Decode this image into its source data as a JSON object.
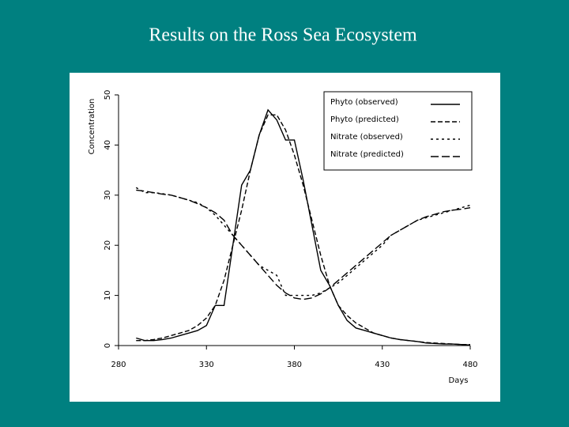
{
  "chart_data": {
    "type": "line",
    "title": "Results on the Ross Sea Ecosystem",
    "x_label": "Days",
    "y_label": "Concentration",
    "xlim": [
      280,
      480
    ],
    "xticks": [
      280,
      330,
      380,
      430,
      480
    ],
    "ylim": [
      0,
      50
    ],
    "yticks": [
      0,
      10,
      20,
      30,
      40,
      50
    ],
    "legend": "top-right",
    "x": [
      290,
      295,
      300,
      305,
      310,
      315,
      320,
      325,
      330,
      335,
      340,
      345,
      350,
      355,
      360,
      365,
      370,
      375,
      380,
      385,
      390,
      395,
      400,
      405,
      410,
      415,
      420,
      425,
      430,
      435,
      440,
      445,
      450,
      455,
      460,
      465,
      470,
      475,
      480
    ],
    "series": [
      {
        "name": "Phyto (observed)",
        "color": "#000000",
        "dash": "solid",
        "values": [
          1.5,
          1,
          1,
          1.2,
          1.5,
          2,
          2.5,
          3,
          4,
          8,
          8,
          20,
          32,
          35,
          42,
          47,
          45,
          41,
          41,
          33,
          24,
          15,
          12,
          8,
          5,
          3.5,
          3,
          2.5,
          2,
          1.5,
          1.2,
          1,
          0.8,
          0.5,
          0.4,
          0.3,
          0.3,
          0.2,
          0.1
        ]
      },
      {
        "name": "Phyto (predicted)",
        "color": "#000000",
        "dash": "dashed",
        "values": [
          1,
          1,
          1.2,
          1.5,
          2,
          2.5,
          3,
          4,
          5.5,
          8,
          13,
          20,
          27,
          35,
          42,
          46,
          46,
          43,
          38,
          32,
          25,
          18,
          12,
          8,
          6,
          4.5,
          3.5,
          2.5,
          2,
          1.5,
          1.2,
          1,
          0.8,
          0.6,
          0.5,
          0.4,
          0.3,
          0.2,
          0.2
        ]
      },
      {
        "name": "Nitrate (observed)",
        "color": "#000000",
        "dash": "short-dashed",
        "values": [
          31.5,
          30.5,
          30.5,
          30.3,
          30,
          29.5,
          29,
          28.5,
          27.5,
          26,
          24,
          22,
          20,
          18,
          16,
          15,
          14,
          10,
          10,
          10,
          10,
          10.5,
          11.5,
          12.5,
          14,
          15.5,
          17,
          18.5,
          20,
          22,
          23,
          24,
          25,
          25.5,
          26,
          26.5,
          27,
          27.5,
          28
        ]
      },
      {
        "name": "Nitrate (predicted)",
        "color": "#000000",
        "dash": "long-dashed",
        "values": [
          31,
          30.8,
          30.5,
          30.2,
          30,
          29.5,
          29,
          28.3,
          27.5,
          26.5,
          25,
          22,
          20,
          18,
          16,
          14,
          12,
          10.5,
          9.5,
          9.2,
          9.5,
          10.3,
          11.5,
          13,
          14.5,
          16,
          17.5,
          19,
          20.5,
          22,
          23,
          24,
          25,
          25.7,
          26.2,
          26.7,
          27,
          27.2,
          27.5
        ]
      }
    ]
  }
}
